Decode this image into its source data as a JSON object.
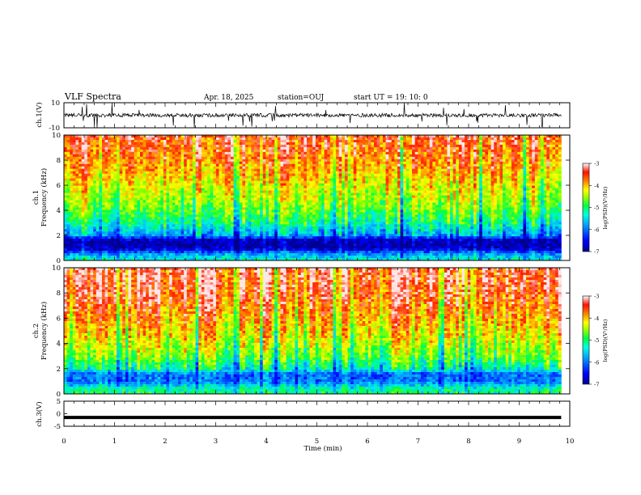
{
  "header": {
    "title": "VLF Spectra",
    "date": "Apr. 18, 2025",
    "station": "station=OUJ",
    "start": "start  UT  =   19: 10: 0"
  },
  "colors": {
    "scale": [
      "#0000b0",
      "#0000ff",
      "#0090ff",
      "#00e8ff",
      "#00ff60",
      "#8cff00",
      "#ffff00",
      "#ffb000",
      "#ff2000",
      "#ffffff"
    ],
    "line": "#000000"
  },
  "chart_data": [
    {
      "type": "line",
      "name": "ch1-waveform",
      "ylabel": "ch.1(V)",
      "ylim": [
        -10,
        10
      ],
      "yticks": [
        "10",
        "-10"
      ],
      "x_range_min": [
        0,
        9.83
      ],
      "baseline_v": 0,
      "amplitude_v": 1.5,
      "spike_max_v": 10
    },
    {
      "type": "heatmap",
      "name": "ch1-spectrogram",
      "ylabel": "ch.1\nFrequency (kHz)",
      "ylabel_lines": [
        "ch.1",
        "Frequency (kHz)"
      ],
      "ylim_khz": [
        0,
        10
      ],
      "yticks": [
        "0",
        "2",
        "4",
        "6",
        "8",
        "10"
      ],
      "x_range_min": [
        0,
        9.83
      ],
      "colorbar": {
        "label": "log(PSD)(V²/Hz)",
        "range": [
          -7,
          -3
        ],
        "ticks": [
          "-3",
          "-4",
          "-5",
          "-6",
          "-7"
        ]
      },
      "band_profile_khz_logpsd": [
        [
          0,
          -5.3
        ],
        [
          0.5,
          -5.8
        ],
        [
          1.0,
          -6.8
        ],
        [
          1.6,
          -6.8
        ],
        [
          2.0,
          -5.8
        ],
        [
          3.0,
          -5.1
        ],
        [
          4.0,
          -4.7
        ],
        [
          5.0,
          -4.4
        ],
        [
          6.0,
          -4.2
        ],
        [
          7.0,
          -3.9
        ],
        [
          8.0,
          -3.7
        ],
        [
          10.0,
          -3.4
        ]
      ]
    },
    {
      "type": "heatmap",
      "name": "ch2-spectrogram",
      "ylabel": "ch.2\nFrequency (kHz)",
      "ylabel_lines": [
        "ch.2",
        "Frequency (kHz)"
      ],
      "ylim_khz": [
        0,
        10
      ],
      "yticks": [
        "0",
        "2",
        "4",
        "6",
        "8",
        "10"
      ],
      "x_range_min": [
        0,
        9.83
      ],
      "colorbar": {
        "label": "log(PSD)(V²/Hz)",
        "range": [
          -7,
          -3
        ],
        "ticks": [
          "-3",
          "-4",
          "-5",
          "-6",
          "-7"
        ]
      },
      "band_profile_khz_logpsd": [
        [
          0,
          -5.0
        ],
        [
          0.5,
          -5.3
        ],
        [
          1.0,
          -6.0
        ],
        [
          1.6,
          -6.0
        ],
        [
          2.0,
          -5.2
        ],
        [
          3.0,
          -4.6
        ],
        [
          4.0,
          -4.3
        ],
        [
          5.0,
          -4.0
        ],
        [
          6.0,
          -3.8
        ],
        [
          7.0,
          -3.6
        ],
        [
          8.0,
          -3.4
        ],
        [
          10.0,
          -3.3
        ]
      ]
    },
    {
      "type": "line",
      "name": "ch3-waveform",
      "ylabel": "ch.3(V)",
      "ylim": [
        -5,
        5
      ],
      "yticks": [
        "5",
        "0",
        "-5"
      ],
      "x_range_min": [
        0,
        9.83
      ],
      "baseline_v": -1.5
    }
  ],
  "xaxis": {
    "label": "Time (min)",
    "range": [
      0,
      10
    ],
    "ticks": [
      "0",
      "1",
      "2",
      "3",
      "4",
      "5",
      "6",
      "7",
      "8",
      "9",
      "10"
    ]
  }
}
